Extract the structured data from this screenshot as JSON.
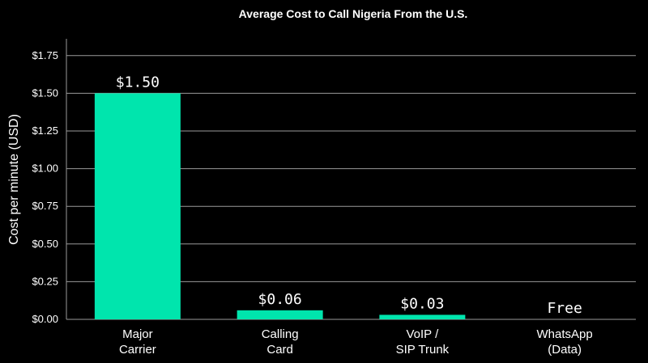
{
  "chart_data": {
    "type": "bar",
    "title": "Average Cost to Call Nigeria From the U.S.",
    "xlabel": "",
    "ylabel": "Cost per minute (USD)",
    "categories": [
      [
        "Major",
        "Carrier"
      ],
      [
        "Calling",
        "Card"
      ],
      [
        "VoIP /",
        "SIP Trunk"
      ],
      [
        "WhatsApp",
        "(Data)"
      ]
    ],
    "values": [
      1.5,
      0.06,
      0.03,
      0
    ],
    "data_labels": [
      "$1.50",
      "$0.06",
      "$0.03",
      "Free"
    ],
    "ylim": [
      0,
      1.85
    ],
    "yticks": [
      0,
      0.25,
      0.5,
      0.75,
      1.0,
      1.25,
      1.5,
      1.75
    ],
    "ytick_labels": [
      "$0.00",
      "$0.25",
      "$0.50",
      "$0.75",
      "$1.00",
      "$1.25",
      "$1.50",
      "$1.75"
    ],
    "grid": "horizontal",
    "bar_color": "#00E5AD",
    "background": "#000000"
  }
}
